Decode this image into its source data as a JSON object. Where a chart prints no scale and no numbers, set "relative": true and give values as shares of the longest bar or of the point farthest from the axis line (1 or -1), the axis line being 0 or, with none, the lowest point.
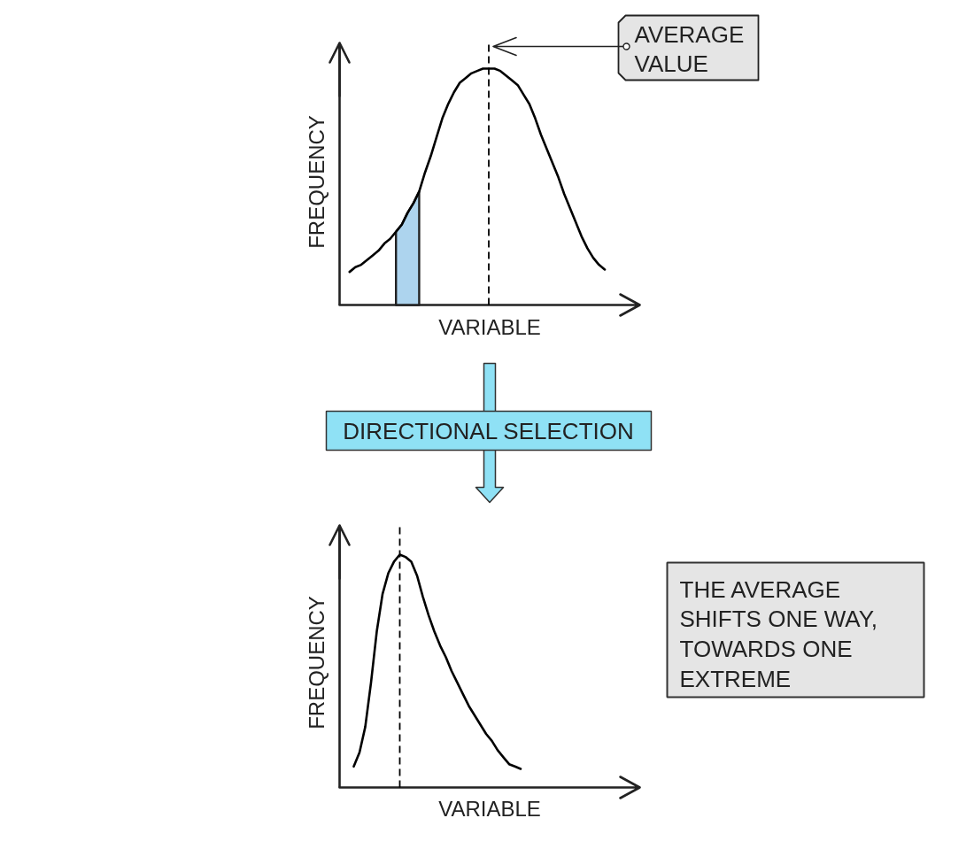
{
  "chart_data": [
    {
      "type": "line",
      "relative": true,
      "xlabel": "VARIABLE",
      "ylabel": "FREQUENCY",
      "categories": [
        null,
        null,
        null,
        null,
        null,
        null,
        null,
        null,
        null,
        null,
        null,
        null,
        null,
        null,
        null,
        null,
        null,
        null,
        null,
        null,
        null,
        null,
        null,
        null,
        null,
        null,
        null,
        null,
        null,
        null,
        null,
        null,
        null,
        null,
        null,
        null,
        null,
        null,
        null,
        null,
        null,
        null,
        null,
        null,
        null
      ],
      "series": [
        {
          "color": "#000000",
          "values": [
            0.14,
            0.16,
            0.17,
            0.19,
            0.21,
            0.23,
            0.26,
            0.28,
            0.31,
            0.34,
            0.39,
            0.43,
            0.48,
            0.56,
            0.63,
            0.71,
            0.79,
            0.85,
            0.9,
            0.94,
            0.96,
            0.98,
            0.99,
            1.0,
            1.0,
            1.0,
            0.99,
            0.97,
            0.95,
            0.93,
            0.89,
            0.85,
            0.79,
            0.72,
            0.66,
            0.6,
            0.54,
            0.47,
            0.41,
            0.35,
            0.29,
            0.24,
            0.2,
            0.17,
            0.15
          ]
        },
        {
          "type": "area",
          "color": "#add4ee",
          "values": [
            null,
            null,
            null,
            null,
            null,
            null,
            null,
            null,
            0.31,
            0.34,
            0.39,
            0.43,
            0.48,
            null,
            null,
            null,
            null,
            null,
            null,
            null,
            null,
            null,
            null,
            null,
            null,
            null,
            null,
            null,
            null,
            null,
            null,
            null,
            null,
            null,
            null,
            null,
            null,
            null,
            null,
            null,
            null,
            null,
            null,
            null,
            null
          ]
        }
      ],
      "annotations": [
        "AVERAGE VALUE"
      ]
    },
    {
      "type": "line",
      "relative": true,
      "xlabel": "VARIABLE",
      "ylabel": "FREQUENCY",
      "categories": [
        null,
        null,
        null,
        null,
        null,
        null,
        null,
        null,
        null,
        null,
        null,
        null,
        null,
        null,
        null,
        null,
        null,
        null,
        null,
        null,
        null,
        null,
        null,
        null,
        null,
        null,
        null,
        null,
        null,
        null
      ],
      "series": [
        {
          "color": "#000000",
          "values": [
            0.09,
            0.15,
            0.26,
            0.45,
            0.67,
            0.83,
            0.92,
            0.97,
            1.0,
            0.99,
            0.97,
            0.91,
            0.82,
            0.74,
            0.67,
            0.61,
            0.56,
            0.5,
            0.45,
            0.4,
            0.35,
            0.31,
            0.27,
            0.23,
            0.2,
            0.16,
            0.13,
            0.1,
            0.09,
            0.08
          ]
        }
      ],
      "annotations": [
        "DIRECTIONAL SELECTION",
        "THE AVERAGE SHIFTS ONE WAY, TOWARDS ONE EXTREME"
      ]
    }
  ]
}
